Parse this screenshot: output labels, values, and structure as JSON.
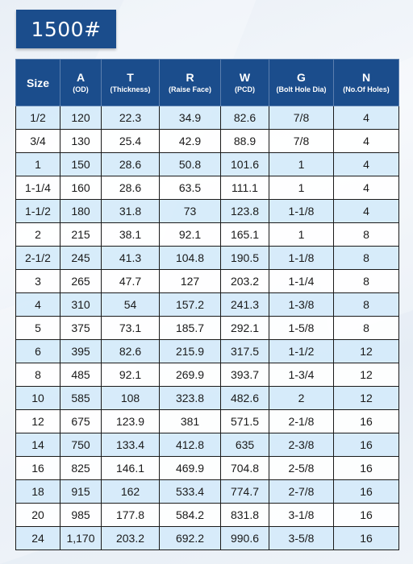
{
  "title": "1500#",
  "table": {
    "headers": [
      {
        "label": "Size",
        "sub": ""
      },
      {
        "label": "A",
        "sub": "(OD)"
      },
      {
        "label": "T",
        "sub": "(Thickness)"
      },
      {
        "label": "R",
        "sub": "(Raise Face)"
      },
      {
        "label": "W",
        "sub": "(PCD)"
      },
      {
        "label": "G",
        "sub": "(Bolt Hole Dia)"
      },
      {
        "label": "N",
        "sub": "(No.Of Holes)"
      }
    ],
    "rows": [
      [
        "1/2",
        "120",
        "22.3",
        "34.9",
        "82.6",
        "7/8",
        "4"
      ],
      [
        "3/4",
        "130",
        "25.4",
        "42.9",
        "88.9",
        "7/8",
        "4"
      ],
      [
        "1",
        "150",
        "28.6",
        "50.8",
        "101.6",
        "1",
        "4"
      ],
      [
        "1-1/4",
        "160",
        "28.6",
        "63.5",
        "111.1",
        "1",
        "4"
      ],
      [
        "1-1/2",
        "180",
        "31.8",
        "73",
        "123.8",
        "1-1/8",
        "4"
      ],
      [
        "2",
        "215",
        "38.1",
        "92.1",
        "165.1",
        "1",
        "8"
      ],
      [
        "2-1/2",
        "245",
        "41.3",
        "104.8",
        "190.5",
        "1-1/8",
        "8"
      ],
      [
        "3",
        "265",
        "47.7",
        "127",
        "203.2",
        "1-1/4",
        "8"
      ],
      [
        "4",
        "310",
        "54",
        "157.2",
        "241.3",
        "1-3/8",
        "8"
      ],
      [
        "5",
        "375",
        "73.1",
        "185.7",
        "292.1",
        "1-5/8",
        "8"
      ],
      [
        "6",
        "395",
        "82.6",
        "215.9",
        "317.5",
        "1-1/2",
        "12"
      ],
      [
        "8",
        "485",
        "92.1",
        "269.9",
        "393.7",
        "1-3/4",
        "12"
      ],
      [
        "10",
        "585",
        "108",
        "323.8",
        "482.6",
        "2",
        "12"
      ],
      [
        "12",
        "675",
        "123.9",
        "381",
        "571.5",
        "2-1/8",
        "16"
      ],
      [
        "14",
        "750",
        "133.4",
        "412.8",
        "635",
        "2-3/8",
        "16"
      ],
      [
        "16",
        "825",
        "146.1",
        "469.9",
        "704.8",
        "2-5/8",
        "16"
      ],
      [
        "18",
        "915",
        "162",
        "533.4",
        "774.7",
        "2-7/8",
        "16"
      ],
      [
        "20",
        "985",
        "177.8",
        "584.2",
        "831.8",
        "3-1/8",
        "16"
      ],
      [
        "24",
        "1,170",
        "203.2",
        "692.2",
        "990.6",
        "3-5/8",
        "16"
      ]
    ]
  },
  "colors": {
    "header_bg": "#1b4d8c",
    "row_tint": "#d5eafa",
    "row_plain": "#ffffff"
  }
}
